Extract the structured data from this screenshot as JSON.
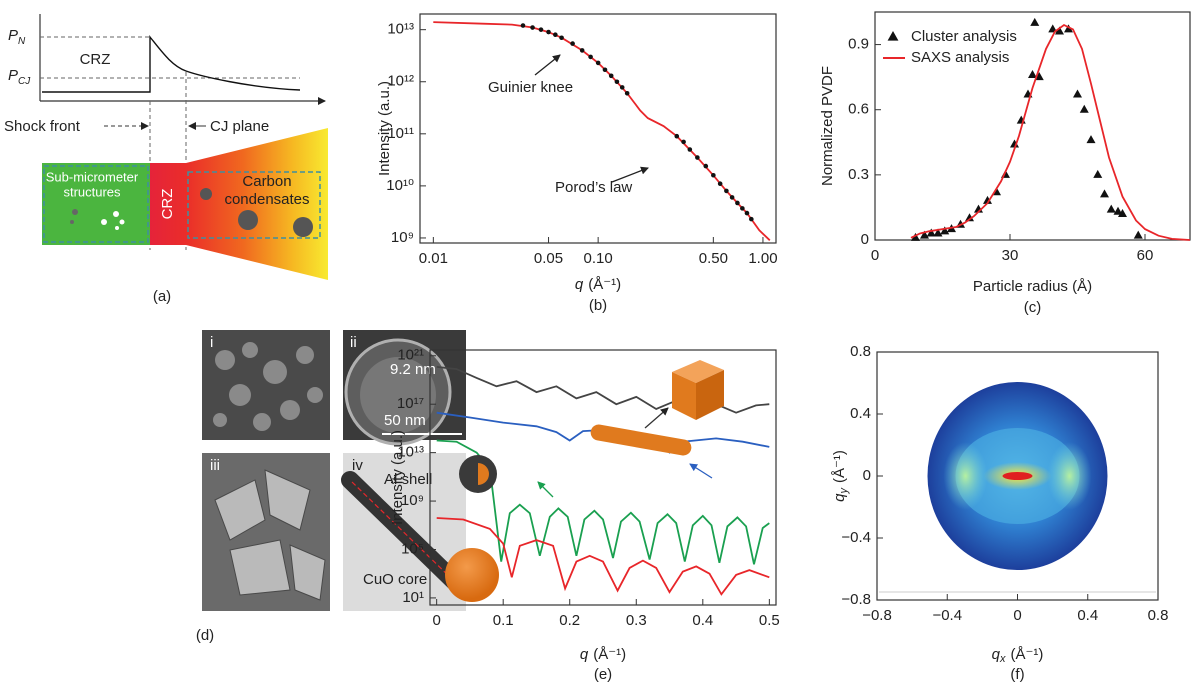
{
  "diagram_a": {
    "p_n": {
      "symbol": "P",
      "subscript": "N"
    },
    "p_cj": {
      "symbol": "P",
      "subscript": "CJ"
    },
    "crz_top": "CRZ",
    "shock_front": "Shock front",
    "cj_plane": "CJ plane",
    "sub_micrometer": [
      "Sub-micrometer",
      "structures"
    ],
    "crz_band": "CRZ",
    "carbon": [
      "Carbon",
      "condensates"
    ],
    "caption": "(a)"
  },
  "images_d": {
    "caption": "(d)",
    "panels": [
      {
        "label": "i"
      },
      {
        "label": "ii",
        "annotations": [
          "9.2 nm",
          "50 nm"
        ]
      },
      {
        "label": "iii"
      },
      {
        "label": "iv",
        "annotations": [
          "Al shell",
          "CuO core"
        ]
      }
    ]
  },
  "chart_data": [
    {
      "type": "line",
      "caption": "(b)",
      "xlabel": {
        "symbol": "q",
        "unit": "(Å⁻¹)"
      },
      "ylabel": "Intensity (a.u.)",
      "xscale": "log",
      "yscale": "log",
      "xlim": [
        0.0083,
        1.2
      ],
      "ylim": [
        800000000.0,
        20000000000000.0
      ],
      "xticks": [
        0.01,
        0.05,
        {
          "value": 0.1,
          "label": "0.10"
        },
        {
          "value": 0.5,
          "label": "0.50"
        },
        {
          "value": 1,
          "label": "1.00"
        }
      ],
      "yticks": [
        {
          "value": 1000000000.0,
          "label": "10⁹"
        },
        {
          "value": 10000000000.0,
          "label": "10¹⁰"
        },
        {
          "value": 100000000000.0,
          "label": "10¹¹"
        },
        {
          "value": 1000000000000.0,
          "label": "10¹²"
        },
        {
          "value": 10000000000000.0,
          "label": "10¹³"
        }
      ],
      "annotations": [
        "Guinier knee",
        "Porod’s law"
      ],
      "series": [
        {
          "color": "#e8262a",
          "marker": "none",
          "x": [
            0.01,
            0.02,
            0.03,
            0.04,
            0.05,
            0.06,
            0.08,
            0.1,
            0.12,
            0.15,
            0.18,
            0.2,
            0.25,
            0.3,
            0.4,
            0.5,
            0.6,
            0.7,
            0.8,
            0.95,
            1.1
          ],
          "values": [
            14000000000000.0,
            13000000000000.0,
            12500000000000.0,
            11000000000000.0,
            9000000000000.0,
            7000000000000.0,
            4000000000000.0,
            2300000000000.0,
            1300000000000.0,
            600000000000.0,
            280000000000.0,
            200000000000.0,
            140000000000.0,
            90000000000.0,
            35000000000.0,
            16000000000.0,
            8000000000.0,
            4700000000.0,
            3000000000.0,
            1400000000.0,
            900000000.0
          ]
        },
        {
          "color": "#111111",
          "marker": "circle",
          "x": [
            0.035,
            0.04,
            0.045,
            0.05,
            0.055,
            0.06,
            0.07,
            0.08,
            0.09,
            0.1,
            0.11,
            0.12,
            0.13,
            0.14,
            0.15,
            0.3,
            0.33,
            0.36,
            0.4,
            0.45,
            0.5,
            0.55,
            0.6,
            0.65,
            0.7,
            0.75,
            0.8,
            0.85
          ],
          "values": [
            12000000000000.0,
            11000000000000.0,
            10000000000000.0,
            9000000000000.0,
            8000000000000.0,
            7000000000000.0,
            5400000000000.0,
            4000000000000.0,
            3000000000000.0,
            2300000000000.0,
            1700000000000.0,
            1300000000000.0,
            1000000000000.0,
            780000000000.0,
            600000000000.0,
            90000000000.0,
            70000000000.0,
            50000000000.0,
            35000000000.0,
            24000000000.0,
            16000000000.0,
            11000000000.0,
            8000000000.0,
            6000000000.0,
            4700000000.0,
            3700000000.0,
            3000000000.0,
            2300000000.0
          ]
        }
      ]
    },
    {
      "type": "line",
      "caption": "(c)",
      "xlabel": "Particle radius (Å)",
      "ylabel": "Normalized PVDF",
      "xlim": [
        0,
        70
      ],
      "ylim": [
        0,
        1.05
      ],
      "xticks": [
        0,
        30,
        60
      ],
      "yticks": [
        0,
        0.3,
        0.6,
        0.9
      ],
      "legend": "upper left",
      "series": [
        {
          "name": "Cluster analysis",
          "color": "#111111",
          "marker": "triangle",
          "x": [
            9,
            11,
            12.5,
            14,
            15.5,
            17,
            19,
            21,
            23,
            25,
            27,
            29,
            31,
            32.5,
            34,
            35,
            35.5,
            36.5,
            39.5,
            41,
            43,
            45,
            46.5,
            48,
            49.5,
            51,
            52.5,
            54,
            55,
            58.5
          ],
          "values": [
            0.01,
            0.02,
            0.03,
            0.03,
            0.04,
            0.05,
            0.07,
            0.1,
            0.14,
            0.18,
            0.22,
            0.3,
            0.44,
            0.55,
            0.67,
            0.76,
            1.0,
            0.75,
            0.97,
            0.96,
            0.97,
            0.67,
            0.6,
            0.46,
            0.3,
            0.21,
            0.14,
            0.13,
            0.12,
            0.02
          ]
        },
        {
          "name": "SAXS analysis",
          "color": "#e8262a",
          "marker": "none",
          "x": [
            8,
            10,
            12,
            15,
            18,
            20,
            22,
            25,
            28,
            30,
            32,
            35,
            38,
            40,
            42,
            44,
            46,
            48,
            50,
            52,
            55,
            58,
            60,
            63,
            66,
            70
          ],
          "values": [
            0.01,
            0.03,
            0.04,
            0.05,
            0.06,
            0.08,
            0.11,
            0.17,
            0.27,
            0.36,
            0.48,
            0.7,
            0.88,
            0.96,
            0.99,
            0.97,
            0.88,
            0.72,
            0.55,
            0.38,
            0.2,
            0.09,
            0.05,
            0.02,
            0.005,
            0
          ]
        }
      ]
    },
    {
      "type": "line",
      "caption": "(e)",
      "xlabel": {
        "symbol": "q",
        "unit": "(Å⁻¹)"
      },
      "ylabel": "Intensity (a.u.)",
      "yscale": "log",
      "xlim": [
        -0.01,
        0.51
      ],
      "ylim": [
        2.6,
        3e+21
      ],
      "xticks": [
        0,
        0.1,
        0.2,
        0.3,
        0.4,
        0.5
      ],
      "yticks": [
        {
          "value": 10,
          "label": "10¹"
        },
        {
          "value": 100000.0,
          "label": "10⁵"
        },
        {
          "value": 1000000000.0,
          "label": "10⁹"
        },
        {
          "value": 10000000000000.0,
          "label": "10¹³"
        },
        {
          "value": 1e+17,
          "label": "10¹⁷"
        },
        {
          "value": 1e+21,
          "label": "10²¹"
        }
      ],
      "series": [
        {
          "color": "#444444",
          "marker": "none",
          "x": [
            0,
            0.03,
            0.06,
            0.09,
            0.12,
            0.15,
            0.18,
            0.21,
            0.24,
            0.27,
            0.3,
            0.33,
            0.36,
            0.39,
            0.42,
            0.45,
            0.48,
            0.5
          ],
          "values": [
            1.2e+20,
            8e+19,
            1.5e+19,
            3e+18,
            8e+18,
            1e+18,
            3e+18,
            3e+17,
            1e+18,
            1e+17,
            4e+17,
            4e+16,
            2e+17,
            2e+16,
            1e+17,
            2e+16,
            8e+16,
            1e+17
          ]
        },
        {
          "color": "#2a5fc0",
          "marker": "none",
          "x": [
            0,
            0.05,
            0.1,
            0.15,
            0.18,
            0.2,
            0.22,
            0.26,
            0.3,
            0.33,
            0.35,
            0.37,
            0.42,
            0.46,
            0.5
          ],
          "values": [
            2e+16,
            8000000000000000.0,
            3000000000000000.0,
            1500000000000000.0,
            500000000000000.0,
            100000000000000.0,
            600000000000000.0,
            800000000000000.0,
            400000000000000.0,
            100000000000000.0,
            10000000000000.0,
            80000000000000.0,
            150000000000000.0,
            80000000000000.0,
            30000000000000.0
          ]
        },
        {
          "color": "#1aa050",
          "marker": "none",
          "x": [
            0,
            0.03,
            0.06,
            0.08,
            0.097,
            0.11,
            0.125,
            0.14,
            0.155,
            0.17,
            0.183,
            0.197,
            0.21,
            0.222,
            0.237,
            0.25,
            0.265,
            0.277,
            0.292,
            0.305,
            0.32,
            0.332,
            0.347,
            0.36,
            0.373,
            0.385,
            0.4,
            0.413,
            0.425,
            0.437,
            0.452,
            0.465,
            0.477,
            0.49,
            0.5
          ],
          "values": [
            100000000000000.0,
            80000000000000.0,
            10000000000000.0,
            500000000000.0,
            10000.0,
            100000000.0,
            500000000.0,
            100000000.0,
            30000.0,
            50000000.0,
            250000000.0,
            50000000.0,
            30000.0,
            30000000.0,
            160000000.0,
            30000000.0,
            20000.0,
            20000000.0,
            110000000.0,
            20000000.0,
            15000.0,
            15000000.0,
            80000000.0,
            15000000.0,
            10000.0,
            10000000.0,
            60000000.0,
            10000000.0,
            8000.0,
            8000000.0,
            45000000.0,
            8000000.0,
            6000.0,
            6000000.0,
            15000000.0
          ]
        },
        {
          "color": "#e8262a",
          "marker": "none",
          "x": [
            0,
            0.04,
            0.08,
            0.1,
            0.113,
            0.125,
            0.15,
            0.175,
            0.193,
            0.21,
            0.23,
            0.25,
            0.272,
            0.29,
            0.31,
            0.33,
            0.35,
            0.37,
            0.39,
            0.41,
            0.428,
            0.45,
            0.47,
            0.5
          ],
          "values": [
            40000000.0,
            30000000.0,
            5000000.0,
            300000.0,
            500,
            200000.0,
            600000.0,
            200000.0,
            60,
            10000.0,
            30000.0,
            10000.0,
            40,
            3000,
            12000.0,
            3000,
            30,
            1500,
            4000,
            1000,
            20,
            800,
            2000,
            500
          ]
        }
      ]
    },
    {
      "type": "heatmap",
      "caption": "(f)",
      "xlabel": {
        "symbol": "q",
        "subscript": "x",
        "unit": "(Å⁻¹)"
      },
      "ylabel": {
        "symbol": "q",
        "subscript": "y",
        "unit": "(Å⁻¹)"
      },
      "xlim": [
        -0.8,
        0.8
      ],
      "ylim": [
        -0.8,
        0.8
      ],
      "xticks": [
        {
          "value": -0.8,
          "label": "−0.8"
        },
        {
          "value": -0.4,
          "label": "−0.4"
        },
        0,
        0.4,
        0.8
      ],
      "yticks": [
        {
          "value": -0.8,
          "label": "−0.8"
        },
        {
          "value": -0.4,
          "label": "−0.4"
        },
        0,
        0.4,
        0.8
      ]
    }
  ]
}
